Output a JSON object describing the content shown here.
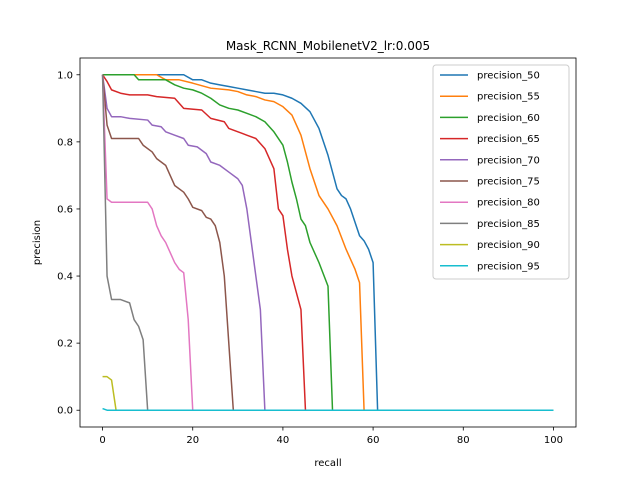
{
  "chart_data": {
    "type": "line",
    "title": "Mask_RCNN_MobilenetV2_lr:0.005",
    "xlabel": "recall",
    "ylabel": "precision",
    "xlim": [
      -5,
      105
    ],
    "ylim": [
      -0.05,
      1.05
    ],
    "xticks": [
      0,
      20,
      40,
      60,
      80,
      100
    ],
    "yticks": [
      0.0,
      0.2,
      0.4,
      0.6,
      0.8,
      1.0
    ],
    "xtick_labels": [
      "0",
      "20",
      "40",
      "60",
      "80",
      "100"
    ],
    "ytick_labels": [
      "0.0",
      "0.2",
      "0.4",
      "0.6",
      "0.8",
      "1.0"
    ],
    "grid": false,
    "legend_position": "top-right",
    "series": [
      {
        "name": "precision_50",
        "color": "#1f77b4",
        "points": [
          [
            0,
            1.0
          ],
          [
            18,
            1.0
          ],
          [
            20,
            0.985
          ],
          [
            22,
            0.985
          ],
          [
            24,
            0.975
          ],
          [
            26,
            0.97
          ],
          [
            28,
            0.965
          ],
          [
            30,
            0.96
          ],
          [
            32,
            0.955
          ],
          [
            34,
            0.95
          ],
          [
            36,
            0.945
          ],
          [
            38,
            0.945
          ],
          [
            40,
            0.94
          ],
          [
            42,
            0.93
          ],
          [
            44,
            0.915
          ],
          [
            46,
            0.89
          ],
          [
            48,
            0.84
          ],
          [
            50,
            0.76
          ],
          [
            51,
            0.71
          ],
          [
            52,
            0.66
          ],
          [
            53,
            0.64
          ],
          [
            54,
            0.63
          ],
          [
            55,
            0.6
          ],
          [
            56,
            0.56
          ],
          [
            57,
            0.52
          ],
          [
            58,
            0.505
          ],
          [
            59,
            0.48
          ],
          [
            60,
            0.44
          ],
          [
            61,
            0.0
          ],
          [
            100,
            0.0
          ]
        ]
      },
      {
        "name": "precision_55",
        "color": "#ff7f0e",
        "points": [
          [
            0,
            1.0
          ],
          [
            12,
            1.0
          ],
          [
            14,
            0.985
          ],
          [
            17,
            0.985
          ],
          [
            20,
            0.975
          ],
          [
            24,
            0.96
          ],
          [
            28,
            0.955
          ],
          [
            30,
            0.95
          ],
          [
            32,
            0.94
          ],
          [
            34,
            0.935
          ],
          [
            36,
            0.925
          ],
          [
            38,
            0.92
          ],
          [
            40,
            0.905
          ],
          [
            42,
            0.88
          ],
          [
            44,
            0.82
          ],
          [
            46,
            0.72
          ],
          [
            48,
            0.64
          ],
          [
            50,
            0.6
          ],
          [
            52,
            0.55
          ],
          [
            54,
            0.48
          ],
          [
            56,
            0.42
          ],
          [
            57,
            0.38
          ],
          [
            58,
            0.0
          ],
          [
            100,
            0.0
          ]
        ]
      },
      {
        "name": "precision_60",
        "color": "#2ca02c",
        "points": [
          [
            0,
            1.0
          ],
          [
            7,
            1.0
          ],
          [
            8,
            0.985
          ],
          [
            14,
            0.985
          ],
          [
            16,
            0.97
          ],
          [
            18,
            0.96
          ],
          [
            20,
            0.955
          ],
          [
            22,
            0.945
          ],
          [
            24,
            0.93
          ],
          [
            26,
            0.91
          ],
          [
            28,
            0.9
          ],
          [
            30,
            0.895
          ],
          [
            32,
            0.885
          ],
          [
            34,
            0.875
          ],
          [
            36,
            0.86
          ],
          [
            38,
            0.83
          ],
          [
            40,
            0.79
          ],
          [
            41,
            0.74
          ],
          [
            42,
            0.68
          ],
          [
            43,
            0.63
          ],
          [
            44,
            0.57
          ],
          [
            45,
            0.55
          ],
          [
            46,
            0.5
          ],
          [
            48,
            0.44
          ],
          [
            50,
            0.37
          ],
          [
            51,
            0.0
          ],
          [
            100,
            0.0
          ]
        ]
      },
      {
        "name": "precision_65",
        "color": "#d62728",
        "points": [
          [
            0,
            1.0
          ],
          [
            1,
            0.98
          ],
          [
            2,
            0.955
          ],
          [
            4,
            0.945
          ],
          [
            6,
            0.94
          ],
          [
            10,
            0.94
          ],
          [
            12,
            0.935
          ],
          [
            16,
            0.93
          ],
          [
            18,
            0.9
          ],
          [
            22,
            0.895
          ],
          [
            24,
            0.87
          ],
          [
            27,
            0.86
          ],
          [
            28,
            0.84
          ],
          [
            31,
            0.825
          ],
          [
            32,
            0.82
          ],
          [
            34,
            0.81
          ],
          [
            36,
            0.78
          ],
          [
            38,
            0.72
          ],
          [
            39,
            0.6
          ],
          [
            40,
            0.58
          ],
          [
            41,
            0.48
          ],
          [
            42,
            0.4
          ],
          [
            44,
            0.3
          ],
          [
            45,
            0.0
          ],
          [
            100,
            0.0
          ]
        ]
      },
      {
        "name": "precision_70",
        "color": "#9467bd",
        "points": [
          [
            0,
            1.0
          ],
          [
            1,
            0.9
          ],
          [
            2,
            0.875
          ],
          [
            4,
            0.875
          ],
          [
            6,
            0.87
          ],
          [
            10,
            0.865
          ],
          [
            11,
            0.85
          ],
          [
            13,
            0.845
          ],
          [
            14,
            0.83
          ],
          [
            16,
            0.82
          ],
          [
            18,
            0.81
          ],
          [
            19,
            0.79
          ],
          [
            21,
            0.785
          ],
          [
            23,
            0.765
          ],
          [
            24,
            0.74
          ],
          [
            26,
            0.73
          ],
          [
            28,
            0.71
          ],
          [
            30,
            0.69
          ],
          [
            31,
            0.67
          ],
          [
            32,
            0.6
          ],
          [
            33,
            0.5
          ],
          [
            34,
            0.4
          ],
          [
            35,
            0.3
          ],
          [
            36,
            0.0
          ],
          [
            100,
            0.0
          ]
        ]
      },
      {
        "name": "precision_75",
        "color": "#8c564b",
        "points": [
          [
            0,
            1.0
          ],
          [
            1,
            0.85
          ],
          [
            2,
            0.81
          ],
          [
            8,
            0.81
          ],
          [
            9,
            0.79
          ],
          [
            11,
            0.77
          ],
          [
            12,
            0.75
          ],
          [
            14,
            0.73
          ],
          [
            15,
            0.7
          ],
          [
            16,
            0.67
          ],
          [
            18,
            0.65
          ],
          [
            19,
            0.63
          ],
          [
            20,
            0.605
          ],
          [
            22,
            0.595
          ],
          [
            23,
            0.575
          ],
          [
            24,
            0.57
          ],
          [
            25,
            0.55
          ],
          [
            26,
            0.5
          ],
          [
            27,
            0.4
          ],
          [
            28,
            0.2
          ],
          [
            29,
            0.0
          ],
          [
            100,
            0.0
          ]
        ]
      },
      {
        "name": "precision_80",
        "color": "#e377c2",
        "points": [
          [
            0,
            1.0
          ],
          [
            1,
            0.63
          ],
          [
            2,
            0.62
          ],
          [
            10,
            0.62
          ],
          [
            11,
            0.6
          ],
          [
            12,
            0.55
          ],
          [
            13,
            0.52
          ],
          [
            14,
            0.5
          ],
          [
            15,
            0.47
          ],
          [
            16,
            0.44
          ],
          [
            17,
            0.42
          ],
          [
            18,
            0.41
          ],
          [
            19,
            0.27
          ],
          [
            20,
            0.0
          ],
          [
            100,
            0.0
          ]
        ]
      },
      {
        "name": "precision_85",
        "color": "#7f7f7f",
        "points": [
          [
            0,
            1.0
          ],
          [
            1,
            0.4
          ],
          [
            2,
            0.33
          ],
          [
            4,
            0.33
          ],
          [
            6,
            0.32
          ],
          [
            7,
            0.27
          ],
          [
            8,
            0.25
          ],
          [
            9,
            0.21
          ],
          [
            10,
            0.0
          ],
          [
            100,
            0.0
          ]
        ]
      },
      {
        "name": "precision_90",
        "color": "#bcbd22",
        "points": [
          [
            0,
            0.1
          ],
          [
            1,
            0.1
          ],
          [
            2,
            0.09
          ],
          [
            3,
            0.0
          ],
          [
            100,
            0.0
          ]
        ]
      },
      {
        "name": "precision_95",
        "color": "#17becf",
        "points": [
          [
            0,
            0.005
          ],
          [
            1,
            0.0
          ],
          [
            100,
            0.0
          ]
        ]
      }
    ]
  }
}
